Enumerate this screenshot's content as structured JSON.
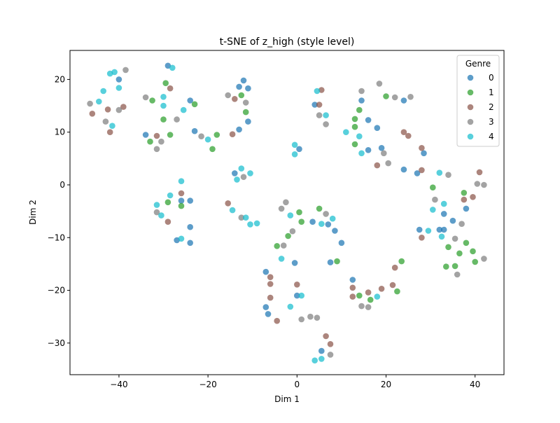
{
  "chart_data": {
    "type": "scatter",
    "title": "t-SNE of z_high (style level)",
    "xlabel": "Dim 1",
    "ylabel": "Dim 2",
    "xlim": [
      -51,
      46.5
    ],
    "ylim": [
      -36,
      25.5
    ],
    "xticks": [
      -40,
      -20,
      0,
      20,
      40
    ],
    "yticks": [
      -30,
      -20,
      -10,
      0,
      10,
      20
    ],
    "grid": false,
    "legend": {
      "title": "Genre",
      "placement": "top-right"
    },
    "series": [
      {
        "name": "0",
        "color": "#1f77b4",
        "points": [
          [
            -40,
            20
          ],
          [
            -29,
            22.6
          ],
          [
            -34,
            9.5
          ],
          [
            -24,
            16
          ],
          [
            -23,
            10.2
          ],
          [
            -13,
            18.6
          ],
          [
            -12,
            19.8
          ],
          [
            -11,
            18.3
          ],
          [
            -11,
            12
          ],
          [
            -13,
            10.5
          ],
          [
            -14,
            2.2
          ],
          [
            -26,
            -3
          ],
          [
            -24,
            -3
          ],
          [
            -24,
            -8
          ],
          [
            -27,
            -10.5
          ],
          [
            -24,
            -11
          ],
          [
            4,
            15.2
          ],
          [
            14.5,
            16
          ],
          [
            16,
            12.3
          ],
          [
            18,
            10.8
          ],
          [
            16,
            6.6
          ],
          [
            19,
            7
          ],
          [
            24,
            16
          ],
          [
            24,
            2.9
          ],
          [
            27,
            2.2
          ],
          [
            28.5,
            6
          ],
          [
            0.5,
            6.8
          ],
          [
            3.5,
            -7
          ],
          [
            7,
            -7.5
          ],
          [
            8.5,
            -8.7
          ],
          [
            10,
            -11
          ],
          [
            7.5,
            -14.7
          ],
          [
            -0.5,
            -14.8
          ],
          [
            -7,
            -16.5
          ],
          [
            -7,
            -23.2
          ],
          [
            -6.5,
            -24.5
          ],
          [
            0,
            -21
          ],
          [
            12.5,
            -18
          ],
          [
            5.5,
            -31.5
          ],
          [
            33,
            -5.5
          ],
          [
            35,
            -6.8
          ],
          [
            33,
            -8.5
          ],
          [
            32,
            -8.5
          ],
          [
            27.5,
            -8.5
          ],
          [
            38,
            -4.5
          ]
        ]
      },
      {
        "name": "1",
        "color": "#2ca02c",
        "points": [
          [
            -32.5,
            16
          ],
          [
            -29.5,
            19.3
          ],
          [
            -30,
            12.4
          ],
          [
            -33,
            8.2
          ],
          [
            -28.5,
            9.5
          ],
          [
            -23,
            15.3
          ],
          [
            -18,
            9.5
          ],
          [
            -19,
            6.8
          ],
          [
            -12.5,
            17
          ],
          [
            -11.5,
            13.8
          ],
          [
            -29,
            -3.3
          ],
          [
            -26,
            -4
          ],
          [
            1,
            -7
          ],
          [
            -2,
            -9.7
          ],
          [
            -4.5,
            -11.6
          ],
          [
            0.5,
            -5.2
          ],
          [
            5,
            -4.5
          ],
          [
            9,
            -14.5
          ],
          [
            14,
            14.2
          ],
          [
            13,
            12.5
          ],
          [
            13,
            11
          ],
          [
            13,
            7.7
          ],
          [
            20,
            16.8
          ],
          [
            30.5,
            -0.5
          ],
          [
            37.5,
            -1.5
          ],
          [
            34,
            -11.8
          ],
          [
            38,
            -11
          ],
          [
            36.5,
            -13
          ],
          [
            39.5,
            -12.6
          ],
          [
            33.5,
            -15.5
          ],
          [
            35.5,
            -15.4
          ],
          [
            40,
            -14.6
          ],
          [
            23.5,
            -14.5
          ],
          [
            22.5,
            -20.2
          ],
          [
            14,
            -21
          ],
          [
            16.5,
            -21.8
          ]
        ]
      },
      {
        "name": "2",
        "color": "#8c564b",
        "points": [
          [
            -42.5,
            14.3
          ],
          [
            -39,
            14.8
          ],
          [
            -46,
            13.5
          ],
          [
            -42,
            10
          ],
          [
            -31.5,
            9.3
          ],
          [
            -28.5,
            18.3
          ],
          [
            -14.5,
            9.6
          ],
          [
            -14,
            16.3
          ],
          [
            5,
            15.2
          ],
          [
            5.5,
            18
          ],
          [
            -26,
            -1.6
          ],
          [
            -29,
            -7
          ],
          [
            -15.5,
            -3.5
          ],
          [
            24,
            10
          ],
          [
            25,
            9.3
          ],
          [
            28,
            7
          ],
          [
            28,
            2.8
          ],
          [
            18,
            3.7
          ],
          [
            39.5,
            -2.3
          ],
          [
            37.5,
            -2.8
          ],
          [
            41,
            2.4
          ],
          [
            28,
            -10
          ],
          [
            -6,
            -17.5
          ],
          [
            -6,
            -18.8
          ],
          [
            -6,
            -21.4
          ],
          [
            -4.5,
            -25.8
          ],
          [
            0,
            -18.9
          ],
          [
            12.5,
            -19.5
          ],
          [
            12.5,
            -21.2
          ],
          [
            16,
            -20.4
          ],
          [
            19,
            -19.7
          ],
          [
            21.5,
            -19
          ],
          [
            22,
            -15.7
          ],
          [
            6.5,
            -28.7
          ],
          [
            7.5,
            -30.2
          ]
        ]
      },
      {
        "name": "3",
        "color": "#7f7f7f",
        "points": [
          [
            -38.5,
            21.8
          ],
          [
            -46.5,
            15.4
          ],
          [
            -40,
            14.2
          ],
          [
            -43,
            12
          ],
          [
            -34,
            16.6
          ],
          [
            -31.5,
            6.8
          ],
          [
            -30.5,
            8.2
          ],
          [
            -27,
            12.4
          ],
          [
            -21.5,
            9.2
          ],
          [
            -15.5,
            17
          ],
          [
            -11.5,
            15.6
          ],
          [
            -31.5,
            -5.2
          ],
          [
            -12.5,
            -6.2
          ],
          [
            -12,
            1.5
          ],
          [
            -3.5,
            -4.5
          ],
          [
            -2.5,
            -3.3
          ],
          [
            -1,
            -8.8
          ],
          [
            -3,
            -11.5
          ],
          [
            5,
            13.2
          ],
          [
            6.5,
            11.5
          ],
          [
            14.5,
            17.8
          ],
          [
            18.5,
            19.2
          ],
          [
            22,
            16.6
          ],
          [
            25.5,
            16.7
          ],
          [
            19.5,
            6
          ],
          [
            20.5,
            4.1
          ],
          [
            34,
            1.9
          ],
          [
            40.5,
            0.2
          ],
          [
            42,
            0
          ],
          [
            31,
            -2.8
          ],
          [
            35.5,
            -10.2
          ],
          [
            37,
            -7.4
          ],
          [
            42,
            -14
          ],
          [
            36,
            -17
          ],
          [
            6.5,
            -5.5
          ],
          [
            1,
            -25.5
          ],
          [
            3,
            -25
          ],
          [
            4.5,
            -25.2
          ],
          [
            14.5,
            -23
          ],
          [
            16,
            -23.2
          ],
          [
            7.5,
            -32.2
          ]
        ]
      },
      {
        "name": "4",
        "color": "#17becf",
        "points": [
          [
            -42,
            21.1
          ],
          [
            -41,
            21.4
          ],
          [
            -43.5,
            17.8
          ],
          [
            -44.5,
            15.8
          ],
          [
            -40,
            18.4
          ],
          [
            -41.5,
            11.2
          ],
          [
            -30,
            16.7
          ],
          [
            -30,
            15
          ],
          [
            -28,
            22.2
          ],
          [
            -25.5,
            14.2
          ],
          [
            -20,
            8.6
          ],
          [
            -12.5,
            3.1
          ],
          [
            -10.5,
            2.2
          ],
          [
            -13.5,
            1
          ],
          [
            -26,
            0.7
          ],
          [
            -28.5,
            -2
          ],
          [
            -31.5,
            -3.8
          ],
          [
            -30.5,
            -5.8
          ],
          [
            -14.5,
            -4.8
          ],
          [
            -11.5,
            -6.2
          ],
          [
            -10.5,
            -7.5
          ],
          [
            -9,
            -7.3
          ],
          [
            -26,
            -10.2
          ],
          [
            -0.5,
            7.6
          ],
          [
            -0.5,
            5.8
          ],
          [
            4.5,
            17.8
          ],
          [
            6.5,
            13.2
          ],
          [
            11,
            10
          ],
          [
            14,
            9.2
          ],
          [
            14.5,
            6
          ],
          [
            32,
            2.3
          ],
          [
            33,
            -3.6
          ],
          [
            30.5,
            -4.7
          ],
          [
            29.5,
            -8.7
          ],
          [
            32.5,
            -9.8
          ],
          [
            -1.5,
            -5.8
          ],
          [
            8,
            -6.4
          ],
          [
            5.5,
            -7.4
          ],
          [
            -3.5,
            -14
          ],
          [
            -1.5,
            -23.1
          ],
          [
            1,
            -21
          ],
          [
            18,
            -21.2
          ],
          [
            4,
            -33.3
          ],
          [
            5.5,
            -33
          ]
        ]
      }
    ]
  }
}
